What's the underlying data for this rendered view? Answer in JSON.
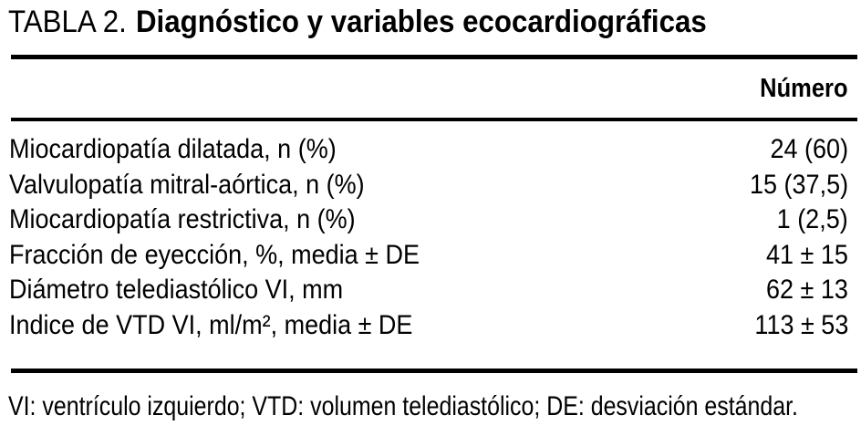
{
  "title": {
    "label": "TABLA 2.",
    "text": "Diagnóstico y variables ecocardiográficas"
  },
  "table": {
    "column_header": "Número",
    "rows": [
      {
        "label": "Miocardiopatía dilatada, n (%)",
        "value": "24 (60)"
      },
      {
        "label": "Valvulopatía mitral-aórtica, n (%)",
        "value": "15 (37,5)"
      },
      {
        "label": "Miocardiopatía restrictiva, n (%)",
        "value": "1 (2,5)"
      },
      {
        "label": "Fracción de eyección, %, media ± DE",
        "value": "41 ± 15"
      },
      {
        "label": "Diámetro telediastólico VI, mm",
        "value": "62 ± 13"
      },
      {
        "label": "Indice de VTD VI, ml/m², media ± DE",
        "value": "113 ± 53"
      }
    ]
  },
  "footnote": "VI: ventrículo izquierdo; VTD: volumen telediastólico; DE: desviación estándar.",
  "colors": {
    "text": "#000000",
    "background": "#ffffff",
    "rule": "#000000"
  }
}
